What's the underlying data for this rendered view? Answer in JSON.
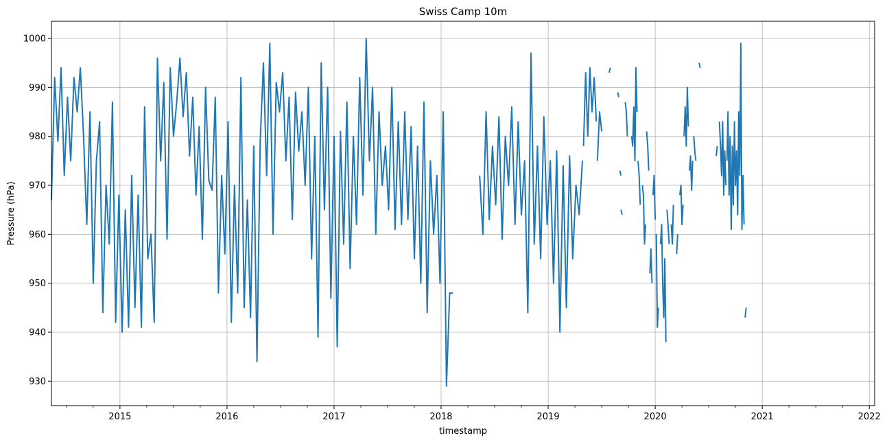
{
  "chart_data": {
    "type": "line",
    "title": "Swiss Camp 10m",
    "xlabel": "timestamp",
    "ylabel": "Pressure (hPa)",
    "xlim": [
      2014.36,
      2022.05
    ],
    "ylim": [
      925,
      1003.5
    ],
    "grid": true,
    "x_ticks": [
      {
        "value": 2015.0,
        "label": "2015"
      },
      {
        "value": 2016.0,
        "label": "2016"
      },
      {
        "value": 2017.0,
        "label": "2017"
      },
      {
        "value": 2018.0,
        "label": "2018"
      },
      {
        "value": 2019.0,
        "label": "2019"
      },
      {
        "value": 2020.0,
        "label": "2020"
      },
      {
        "value": 2021.0,
        "label": "2021"
      },
      {
        "value": 2022.0,
        "label": "2022"
      }
    ],
    "y_ticks": [
      {
        "value": 930,
        "label": "930"
      },
      {
        "value": 940,
        "label": "940"
      },
      {
        "value": 950,
        "label": "950"
      },
      {
        "value": 960,
        "label": "960"
      },
      {
        "value": 970,
        "label": "970"
      },
      {
        "value": 980,
        "label": "980"
      },
      {
        "value": 990,
        "label": "990"
      },
      {
        "value": 1000,
        "label": "1000"
      }
    ],
    "series": [
      {
        "color": "#1f77b4",
        "segments": [
          {
            "x": [
              2014.36,
              2014.39,
              2014.42,
              2014.45,
              2014.48,
              2014.51,
              2014.54,
              2014.57,
              2014.6,
              2014.63,
              2014.66,
              2014.69,
              2014.72,
              2014.75,
              2014.78,
              2014.81,
              2014.84,
              2014.87,
              2014.9,
              2014.93,
              2014.96,
              2014.99,
              2015.02,
              2015.05,
              2015.08,
              2015.11,
              2015.14,
              2015.17,
              2015.2,
              2015.23,
              2015.26,
              2015.29,
              2015.32,
              2015.35,
              2015.38,
              2015.41,
              2015.44,
              2015.47,
              2015.5,
              2015.53,
              2015.56,
              2015.59,
              2015.62,
              2015.65,
              2015.68,
              2015.71,
              2015.74,
              2015.77,
              2015.8,
              2015.83,
              2015.86,
              2015.89,
              2015.92,
              2015.95,
              2015.98,
              2016.01,
              2016.04,
              2016.07,
              2016.1,
              2016.13,
              2016.16,
              2016.19,
              2016.22,
              2016.25,
              2016.28,
              2016.31,
              2016.34,
              2016.37,
              2016.4,
              2016.43,
              2016.46,
              2016.49,
              2016.52,
              2016.55,
              2016.58,
              2016.61,
              2016.64,
              2016.67,
              2016.7,
              2016.73,
              2016.76,
              2016.79,
              2016.82,
              2016.85,
              2016.88,
              2016.91,
              2016.94,
              2016.97,
              2017.0,
              2017.03,
              2017.06,
              2017.09,
              2017.12,
              2017.15,
              2017.18,
              2017.21,
              2017.24,
              2017.27,
              2017.3,
              2017.33,
              2017.36,
              2017.39,
              2017.42,
              2017.45,
              2017.48,
              2017.51,
              2017.54,
              2017.57,
              2017.6,
              2017.63,
              2017.66,
              2017.69,
              2017.72,
              2017.75,
              2017.78,
              2017.81,
              2017.84,
              2017.87,
              2017.9,
              2017.93,
              2017.96,
              2017.99,
              2018.02,
              2018.05,
              2018.08,
              2018.11
            ],
            "y": [
              967,
              992,
              979,
              994,
              972,
              988,
              975,
              992,
              985,
              994,
              980,
              962,
              985,
              950,
              975,
              983,
              944,
              970,
              958,
              987,
              942,
              968,
              940,
              965,
              941,
              972,
              945,
              968,
              941,
              986,
              955,
              960,
              942,
              996,
              975,
              991,
              959,
              994,
              980,
              987,
              996,
              984,
              993,
              976,
              988,
              968,
              982,
              959,
              990,
              971,
              969,
              988,
              948,
              972,
              956,
              983,
              942,
              970,
              948,
              992,
              945,
              967,
              943,
              978,
              934,
              979,
              995,
              972,
              999,
              960,
              991,
              985,
              993,
              975,
              988,
              963,
              989,
              977,
              985,
              970,
              990,
              955,
              980,
              939,
              995,
              965,
              990,
              947,
              980,
              937,
              981,
              958,
              987,
              953,
              980,
              962,
              992,
              968,
              1000,
              975,
              990,
              960,
              985,
              970,
              978,
              965,
              990,
              961,
              983,
              962,
              985,
              963,
              982,
              955,
              978,
              950,
              987,
              944,
              975,
              960,
              972,
              950,
              985,
              929,
              948,
              948
            ]
          },
          {
            "x": [
              2018.36,
              2018.39,
              2018.42,
              2018.45,
              2018.48,
              2018.51,
              2018.54,
              2018.57,
              2018.6,
              2018.63,
              2018.66,
              2018.69,
              2018.72,
              2018.75,
              2018.78,
              2018.81,
              2018.84,
              2018.87,
              2018.9,
              2018.93,
              2018.96,
              2018.99,
              2019.02,
              2019.05,
              2019.08,
              2019.11,
              2019.14,
              2019.17,
              2019.2,
              2019.23,
              2019.26,
              2019.29,
              2019.32
            ],
            "y": [
              972,
              960,
              985,
              963,
              978,
              966,
              984,
              959,
              980,
              970,
              986,
              962,
              983,
              964,
              975,
              944,
              997,
              958,
              978,
              955,
              984,
              962,
              975,
              950,
              977,
              940,
              974,
              945,
              976,
              955,
              970,
              964,
              975
            ]
          },
          {
            "x": [
              2019.33,
              2019.35,
              2019.37,
              2019.39,
              2019.41,
              2019.43,
              2019.45
            ],
            "y": [
              978,
              993,
              980,
              994,
              985,
              992,
              983
            ]
          },
          {
            "x": [
              2019.46,
              2019.48,
              2019.5
            ],
            "y": [
              975,
              985,
              981
            ]
          },
          {
            "x": [
              2019.57,
              2019.58
            ],
            "y": [
              993,
              994
            ]
          },
          {
            "x": [
              2019.65,
              2019.66
            ],
            "y": [
              989,
              988
            ]
          },
          {
            "x": [
              2019.67,
              2019.68
            ],
            "y": [
              973,
              972
            ]
          },
          {
            "x": [
              2019.68,
              2019.69
            ],
            "y": [
              965,
              964
            ]
          },
          {
            "x": [
              2019.72,
              2019.73,
              2019.74
            ],
            "y": [
              987,
              985,
              980
            ]
          },
          {
            "x": [
              2019.78,
              2019.79,
              2019.8,
              2019.81,
              2019.82,
              2019.83
            ],
            "y": [
              980,
              978,
              986,
              975,
              994,
              985
            ]
          },
          {
            "x": [
              2019.84,
              2019.85,
              2019.86
            ],
            "y": [
              975,
              972,
              966
            ]
          },
          {
            "x": [
              2019.88,
              2019.89,
              2019.9,
              2019.91
            ],
            "y": [
              970,
              968,
              958,
              962
            ]
          },
          {
            "x": [
              2019.92,
              2019.93,
              2019.94
            ],
            "y": [
              981,
              978,
              973
            ]
          },
          {
            "x": [
              2019.95,
              2019.96,
              2019.97
            ],
            "y": [
              952,
              957,
              950
            ]
          },
          {
            "x": [
              2019.98,
              2019.99,
              2020.0
            ],
            "y": [
              968,
              972,
              963
            ]
          },
          {
            "x": [
              2020.01,
              2020.02,
              2020.03
            ],
            "y": [
              960,
              941,
              945
            ]
          },
          {
            "x": [
              2020.05,
              2020.06,
              2020.07,
              2020.08,
              2020.09,
              2020.1
            ],
            "y": [
              958,
              962,
              950,
              943,
              955,
              938
            ]
          },
          {
            "x": [
              2020.11,
              2020.12,
              2020.13
            ],
            "y": [
              965,
              962,
              958
            ]
          },
          {
            "x": [
              2020.15,
              2020.16,
              2020.17
            ],
            "y": [
              962,
              958,
              966
            ]
          },
          {
            "x": [
              2020.2,
              2020.21
            ],
            "y": [
              956,
              960
            ]
          },
          {
            "x": [
              2020.23,
              2020.24,
              2020.25,
              2020.26
            ],
            "y": [
              968,
              970,
              962,
              966
            ]
          },
          {
            "x": [
              2020.27,
              2020.28,
              2020.29,
              2020.3,
              2020.31
            ],
            "y": [
              980,
              986,
              978,
              990,
              982
            ]
          },
          {
            "x": [
              2020.32,
              2020.33,
              2020.34,
              2020.35
            ],
            "y": [
              973,
              976,
              969,
              975
            ]
          },
          {
            "x": [
              2020.36,
              2020.37,
              2020.38
            ],
            "y": [
              980,
              977,
              975
            ]
          },
          {
            "x": [
              2020.41,
              2020.42
            ],
            "y": [
              995,
              994
            ]
          },
          {
            "x": [
              2020.57,
              2020.58
            ],
            "y": [
              976,
              978
            ]
          },
          {
            "x": [
              2020.6,
              2020.61,
              2020.62,
              2020.63,
              2020.64,
              2020.65,
              2020.66
            ],
            "y": [
              983,
              978,
              972,
              983,
              968,
              977,
              970
            ]
          },
          {
            "x": [
              2020.67,
              2020.68,
              2020.69,
              2020.7,
              2020.71,
              2020.72,
              2020.73,
              2020.74,
              2020.75,
              2020.76,
              2020.77,
              2020.78,
              2020.79,
              2020.8,
              2020.81,
              2020.82,
              2020.83
            ],
            "y": [
              975,
              985,
              968,
              980,
              961,
              978,
              966,
              983,
              970,
              977,
              964,
              985,
              972,
              999,
              961,
              972,
              962
            ]
          },
          {
            "x": [
              2020.84,
              2020.85
            ],
            "y": [
              943,
              945
            ]
          }
        ]
      }
    ]
  }
}
